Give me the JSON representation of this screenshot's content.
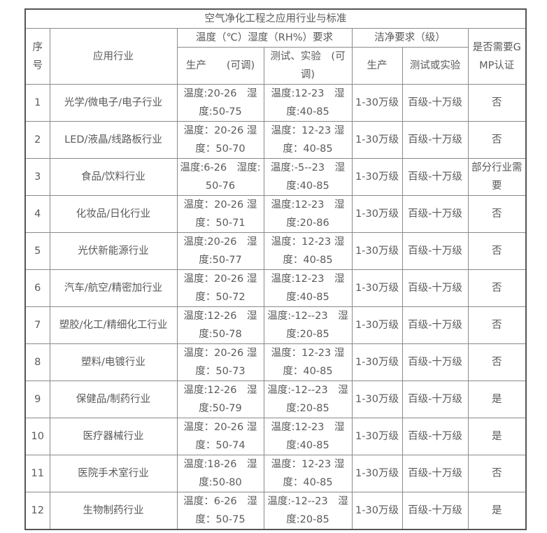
{
  "title": "空气净化工程之应用行业与标准",
  "headers": {
    "seq": "序号",
    "industry": "应用行业",
    "temp_humidity": "温度（℃）湿度（RH%）要求",
    "cleanliness": "洁净要求（级）",
    "gmp": "是否需要GMP认证",
    "production": "生产　　(可调)",
    "testing": "测试、实验　(可调)",
    "clean_production": "生产",
    "clean_testing": "测试或实验"
  },
  "rows": [
    {
      "seq": "1",
      "industry": "光学/微电子/电子行业",
      "production": "温度:20-26　湿度:50-75",
      "testing": "温度:12-23　湿度:40-85",
      "clean_production": "1-30万级",
      "clean_testing": "百级-十万级",
      "gmp": "否"
    },
    {
      "seq": "2",
      "industry": "LED/液晶/线路板行业",
      "production": "温度：20-26 湿度：50-70",
      "testing": "温度：12-23 湿度：40-85",
      "clean_production": "1-30万级",
      "clean_testing": "百级-十万级",
      "gmp": "否"
    },
    {
      "seq": "3",
      "industry": "食品/饮料行业",
      "production": "温度:6-26　湿度:50-76",
      "testing": "温度:-5--23　湿度:40-85",
      "clean_production": "1-30万级",
      "clean_testing": "百级-十万级",
      "gmp": "部分行业需要"
    },
    {
      "seq": "4",
      "industry": "化妆品/日化行业",
      "production": "温度：20-26 湿度：50-71",
      "testing": "温度:12-23　湿度:20-86",
      "clean_production": "1-30万级",
      "clean_testing": "百级-十万级",
      "gmp": "否"
    },
    {
      "seq": "5",
      "industry": "光伏新能源行业",
      "production": "温度:20-26　湿度:50-77",
      "testing": "温度：12-23 湿度：40-85",
      "clean_production": "1-30万级",
      "clean_testing": "百级-十万级",
      "gmp": "否"
    },
    {
      "seq": "6",
      "industry": "汽车/航空/精密加行业",
      "production": "温度：20-26 湿度：50-72",
      "testing": "温度:12-23　湿度:40-85",
      "clean_production": "1-30万级",
      "clean_testing": "百级-十万级",
      "gmp": "否"
    },
    {
      "seq": "7",
      "industry": "塑胶/化工/精细化工行业",
      "production": "温度:12-26　湿度:50-78",
      "testing": "温度:-12--23　湿度:20-85",
      "clean_production": "1-30万级",
      "clean_testing": "百级-十万级",
      "gmp": "否"
    },
    {
      "seq": "8",
      "industry": "塑料/电镀行业",
      "production": "温度：20-26 湿度：50-73",
      "testing": "温度：12-23 湿度：40-85",
      "clean_production": "1-30万级",
      "clean_testing": "百级-十万级",
      "gmp": "否"
    },
    {
      "seq": "9",
      "industry": "保健品/制药行业",
      "production": "温度:12-26　湿度:50-79",
      "testing": "温度:-12--23　湿度:20-85",
      "clean_production": "1-30万级",
      "clean_testing": "百级-十万级",
      "gmp": "是"
    },
    {
      "seq": "10",
      "industry": "医疗器械行业",
      "production": "温度：20-26 湿度：50-74",
      "testing": "温度:12-23　湿度:40-85",
      "clean_production": "1-30万级",
      "clean_testing": "百级-十万级",
      "gmp": "是"
    },
    {
      "seq": "11",
      "industry": "医院手术室行业",
      "production": "温度:18-26　湿度:50-80",
      "testing": "温度：12-23 湿度：40-85",
      "clean_production": "1-30万级",
      "clean_testing": "百级-十万级",
      "gmp": "否"
    },
    {
      "seq": "12",
      "industry": "生物制药行业",
      "production": "温度：6-26　湿度：50-75",
      "testing": "温度:-12--23　湿度:20-85",
      "clean_production": "1-30万级",
      "clean_testing": "百级-十万级",
      "gmp": "是"
    }
  ]
}
